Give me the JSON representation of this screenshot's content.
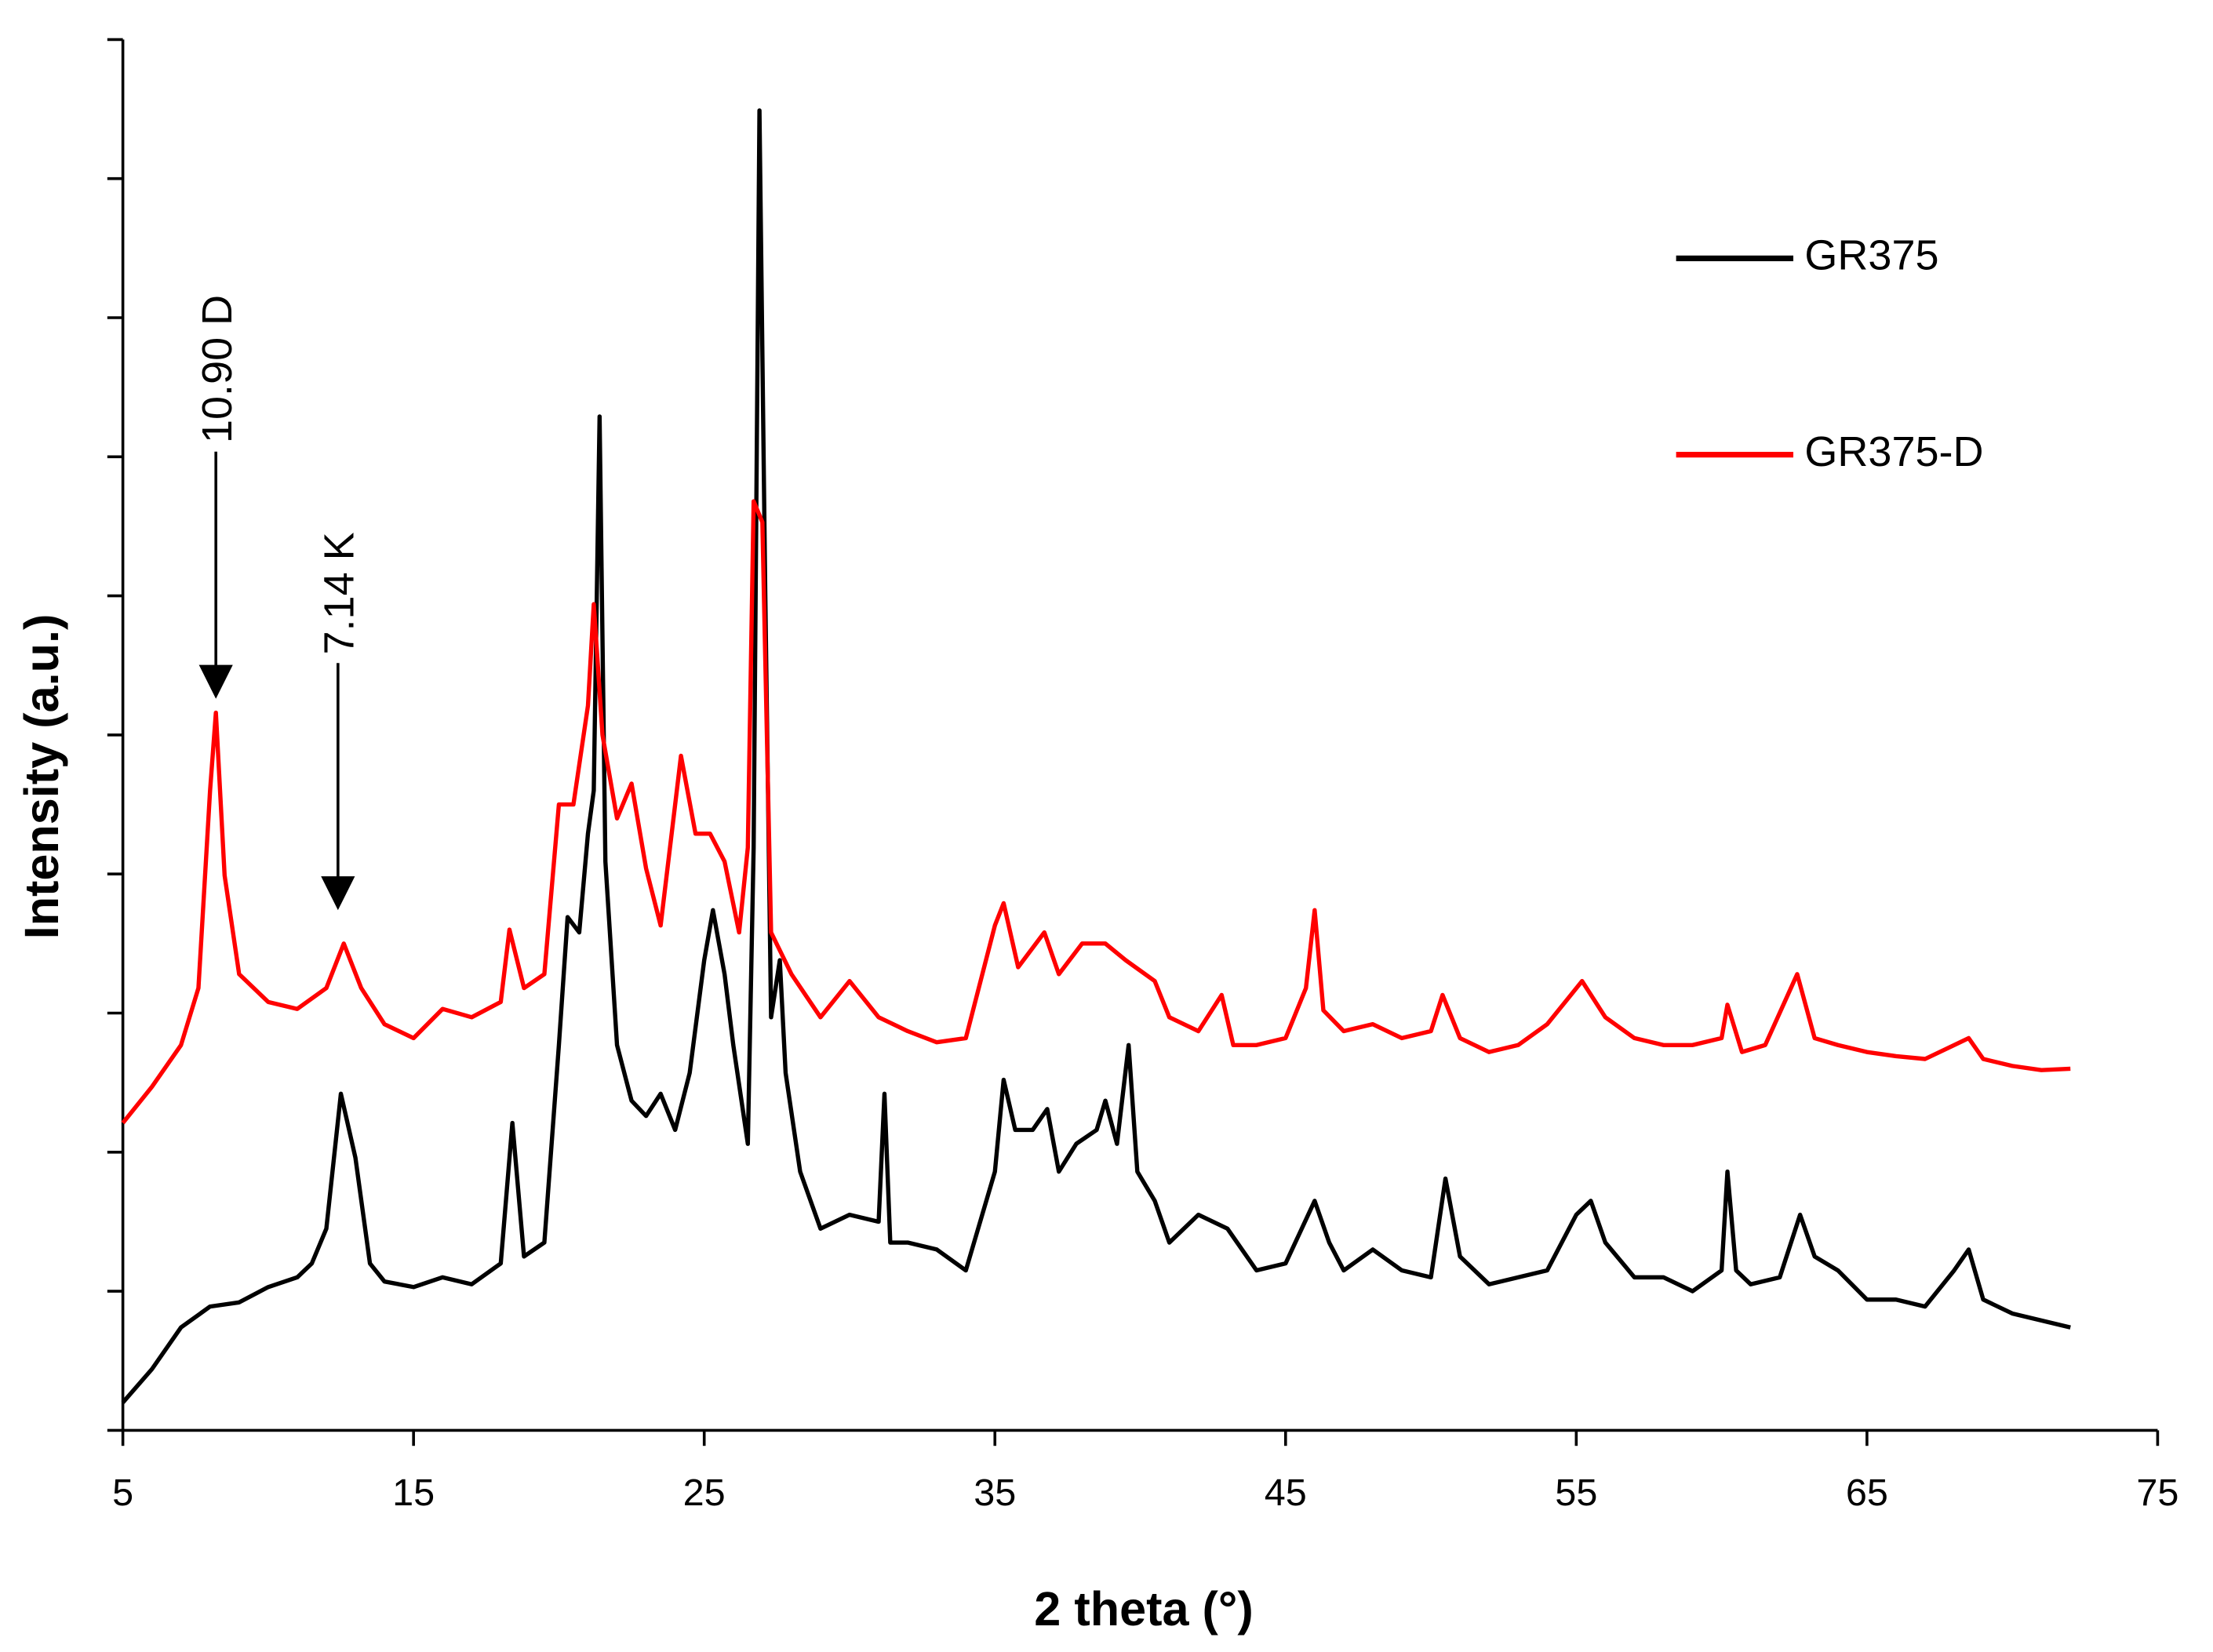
{
  "chart_data": {
    "type": "line",
    "x_label": "2 theta (°)",
    "y_label": "Intensity (a.u.)",
    "xlim": [
      5,
      75
    ],
    "xticks": [
      5,
      15,
      25,
      35,
      45,
      55,
      65,
      75
    ],
    "ylim": [
      0,
      10
    ],
    "yticks": [
      0,
      1,
      2,
      3,
      4,
      5,
      6,
      7,
      8,
      9,
      10
    ],
    "ytick_labels": false,
    "grid": false,
    "legend": "upper right",
    "series": [
      {
        "name": "GR375",
        "color": "#000000",
        "x": [
          5,
          6,
          7,
          8,
          9,
          10,
          11,
          11.5,
          12,
          12.5,
          13,
          13.5,
          14,
          15,
          16,
          17,
          18,
          18.4,
          18.8,
          19.5,
          20,
          20.3,
          20.7,
          21,
          21.2,
          21.4,
          21.6,
          22,
          22.5,
          23,
          23.5,
          24,
          24.5,
          25,
          25.3,
          25.7,
          26,
          26.5,
          26.7,
          26.9,
          27.1,
          27.3,
          27.6,
          27.8,
          28.3,
          29,
          30,
          31,
          31.2,
          31.4,
          32,
          33,
          34,
          35,
          35.3,
          35.7,
          36.3,
          36.8,
          37.2,
          37.8,
          38.5,
          38.8,
          39.2,
          39.6,
          39.9,
          40.5,
          41,
          42,
          43,
          44,
          45,
          46,
          46.5,
          47,
          48,
          49,
          50,
          50.5,
          51,
          52,
          53,
          54,
          55,
          55.5,
          56,
          57,
          58,
          59,
          60,
          60.2,
          60.5,
          61,
          62,
          62.7,
          63.2,
          64,
          65,
          66,
          67,
          68,
          68.5,
          69,
          70,
          71,
          72
        ],
        "values": [
          0.2,
          0.44,
          0.74,
          0.89,
          0.92,
          1.03,
          1.1,
          1.2,
          1.45,
          2.42,
          1.96,
          1.2,
          1.07,
          1.03,
          1.1,
          1.05,
          1.2,
          2.21,
          1.25,
          1.35,
          2.77,
          3.69,
          3.58,
          4.29,
          4.6,
          7.29,
          4.09,
          2.77,
          2.37,
          2.26,
          2.42,
          2.16,
          2.57,
          3.38,
          3.74,
          3.28,
          2.77,
          2.06,
          4.19,
          9.49,
          6.02,
          2.97,
          3.38,
          2.57,
          1.86,
          1.45,
          1.55,
          1.5,
          2.42,
          1.35,
          1.35,
          1.3,
          1.15,
          1.86,
          2.52,
          2.16,
          2.16,
          2.31,
          1.86,
          2.06,
          2.16,
          2.37,
          2.06,
          2.77,
          1.86,
          1.65,
          1.35,
          1.55,
          1.45,
          1.15,
          1.2,
          1.65,
          1.35,
          1.15,
          1.3,
          1.15,
          1.1,
          1.81,
          1.25,
          1.05,
          1.1,
          1.15,
          1.55,
          1.65,
          1.35,
          1.1,
          1.1,
          1.0,
          1.15,
          1.86,
          1.15,
          1.05,
          1.1,
          1.55,
          1.25,
          1.15,
          0.94,
          0.94,
          0.89,
          1.15,
          1.3,
          0.94,
          0.84,
          0.79,
          0.74
        ]
      },
      {
        "name": "GR375-D",
        "color": "#ff0000",
        "x": [
          5,
          6,
          7,
          7.6,
          8,
          8.2,
          8.5,
          9,
          10,
          11,
          12,
          12.6,
          13.2,
          14,
          15,
          16,
          17,
          18,
          18.3,
          18.8,
          19.5,
          20,
          20.5,
          21,
          21.2,
          21.5,
          22,
          22.5,
          23,
          23.5,
          24,
          24.2,
          24.7,
          25.2,
          25.7,
          26.2,
          26.5,
          26.7,
          27,
          27.3,
          28,
          29,
          30,
          31,
          32,
          33,
          34,
          35,
          35.3,
          35.8,
          36.7,
          37.2,
          38,
          38.8,
          39.5,
          40.5,
          41,
          42,
          42.8,
          43.2,
          44,
          45,
          45.7,
          46,
          46.3,
          47,
          48,
          49,
          50,
          50.4,
          51,
          52,
          53,
          54,
          55.2,
          56,
          57,
          58,
          59,
          60,
          60.2,
          60.7,
          61.5,
          62.6,
          63.2,
          64,
          65,
          66,
          67,
          68,
          68.5,
          69,
          70,
          71,
          72
        ],
        "values": [
          2.21,
          2.47,
          2.77,
          3.18,
          4.6,
          5.16,
          3.99,
          3.28,
          3.08,
          3.03,
          3.18,
          3.5,
          3.18,
          2.92,
          2.82,
          3.03,
          2.97,
          3.08,
          3.6,
          3.18,
          3.28,
          4.5,
          4.5,
          5.21,
          5.94,
          5.0,
          4.4,
          4.65,
          4.04,
          3.63,
          4.5,
          4.85,
          4.29,
          4.29,
          4.09,
          3.58,
          4.19,
          6.68,
          6.53,
          3.58,
          3.28,
          2.97,
          3.23,
          2.97,
          2.87,
          2.79,
          2.82,
          3.63,
          3.79,
          3.33,
          3.58,
          3.28,
          3.5,
          3.5,
          3.38,
          3.23,
          2.97,
          2.87,
          3.13,
          2.77,
          2.77,
          2.82,
          3.18,
          3.74,
          3.02,
          2.87,
          2.92,
          2.82,
          2.87,
          3.13,
          2.82,
          2.72,
          2.77,
          2.92,
          3.23,
          2.97,
          2.82,
          2.77,
          2.77,
          2.82,
          3.06,
          2.72,
          2.77,
          3.28,
          2.82,
          2.77,
          2.72,
          2.69,
          2.67,
          2.77,
          2.82,
          2.67,
          2.62,
          2.59,
          2.6
        ]
      }
    ],
    "annotations": [
      {
        "text": "10.90 D",
        "x": 8.2,
        "y": 5.26
      },
      {
        "text": "7.14 K",
        "x": 12.4,
        "y": 3.74
      }
    ]
  }
}
